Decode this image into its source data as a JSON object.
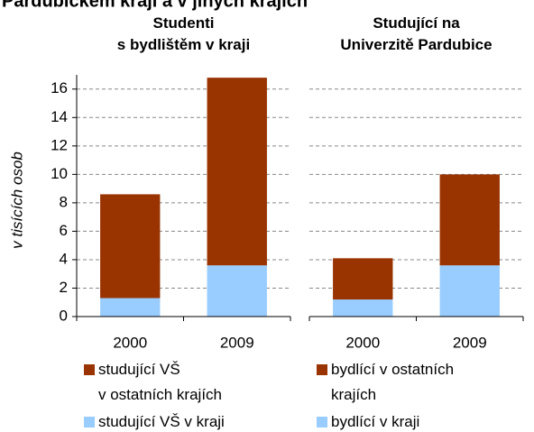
{
  "title": "Pardubickém kraji a v jiných krajích",
  "y_label": "v tisících osob",
  "chart_data": [
    {
      "type": "stacked_bar",
      "title": "Studenti\ns bydlištěm v kraji",
      "categories": [
        "2000",
        "2009"
      ],
      "series": [
        {
          "name": "studující VŠ v kraji",
          "color": "#99ccff",
          "values": [
            1.3,
            3.6
          ]
        },
        {
          "name": "studující VŠ\nv ostatních krajích",
          "color": "#993300",
          "values": [
            7.3,
            13.2
          ]
        }
      ],
      "ylim": [
        0,
        17
      ],
      "yticks": [
        0,
        2,
        4,
        6,
        8,
        10,
        12,
        14,
        16
      ],
      "grid": true,
      "show_ytick_labels": true
    },
    {
      "type": "stacked_bar",
      "title": "Studující na\nUniverzitě Pardubice",
      "categories": [
        "2000",
        "2009"
      ],
      "series": [
        {
          "name": "bydlící v kraji",
          "color": "#99ccff",
          "values": [
            1.2,
            3.6
          ]
        },
        {
          "name": "bydlící v ostatních\nkrajích",
          "color": "#993300",
          "values": [
            2.9,
            6.4
          ]
        }
      ],
      "ylim": [
        0,
        17
      ],
      "yticks": [
        0,
        2,
        4,
        6,
        8,
        10,
        12,
        14,
        16
      ],
      "grid": true,
      "show_ytick_labels": false
    }
  ]
}
